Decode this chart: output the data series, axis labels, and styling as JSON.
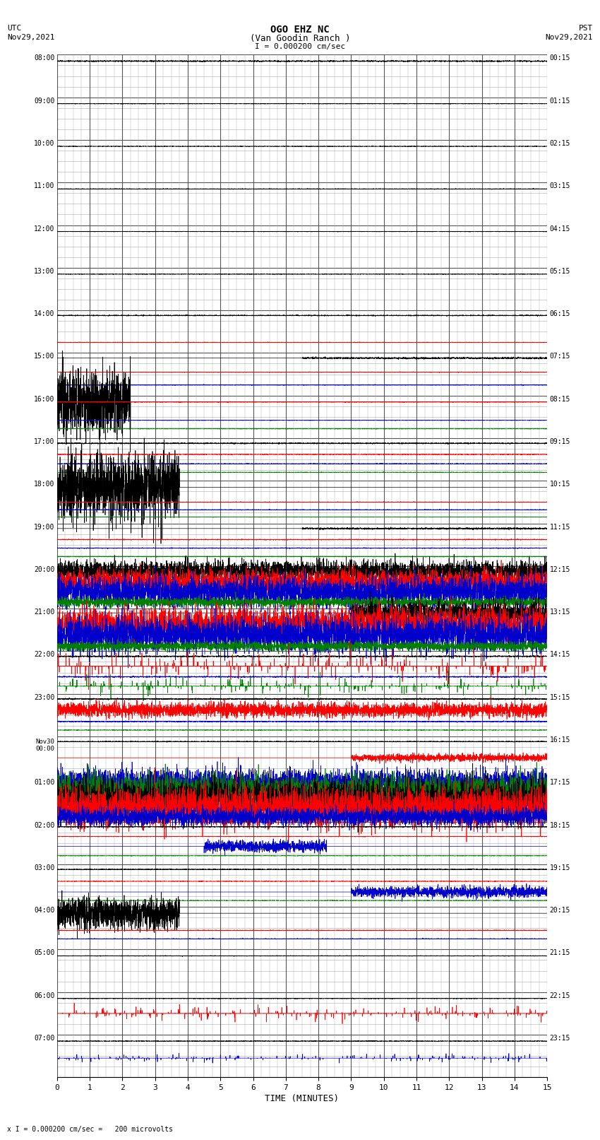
{
  "title_line1": "OGO EHZ NC",
  "title_line2": "(Van Goodin Ranch )",
  "title_line3": "I = 0.000200 cm/sec",
  "left_header_line1": "UTC",
  "left_header_line2": "Nov29,2021",
  "right_header_line1": "PST",
  "right_header_line2": "Nov29,2021",
  "xlabel": "TIME (MINUTES)",
  "footer": "x I = 0.000200 cm/sec =   200 microvolts",
  "bg_color": "#ffffff",
  "grid_major_color": "#555555",
  "grid_minor_color": "#aaaaaa",
  "xmin": 0,
  "xmax": 15,
  "xticks": [
    0,
    1,
    2,
    3,
    4,
    5,
    6,
    7,
    8,
    9,
    10,
    11,
    12,
    13,
    14,
    15
  ],
  "utc_labels": [
    "08:00",
    "09:00",
    "10:00",
    "11:00",
    "12:00",
    "13:00",
    "14:00",
    "15:00",
    "16:00",
    "17:00",
    "18:00",
    "19:00",
    "20:00",
    "21:00",
    "22:00",
    "23:00",
    "Nov30\n00:00",
    "01:00",
    "02:00",
    "03:00",
    "04:00",
    "05:00",
    "06:00",
    "07:00"
  ],
  "pst_labels": [
    "00:15",
    "01:15",
    "02:15",
    "03:15",
    "04:15",
    "05:15",
    "06:15",
    "07:15",
    "08:15",
    "09:15",
    "10:15",
    "11:15",
    "12:15",
    "13:15",
    "14:15",
    "15:15",
    "16:15",
    "17:15",
    "18:15",
    "19:15",
    "20:15",
    "21:15",
    "22:15",
    "23:15"
  ],
  "num_rows": 24,
  "num_subrows": 4,
  "noise_seed": 42
}
